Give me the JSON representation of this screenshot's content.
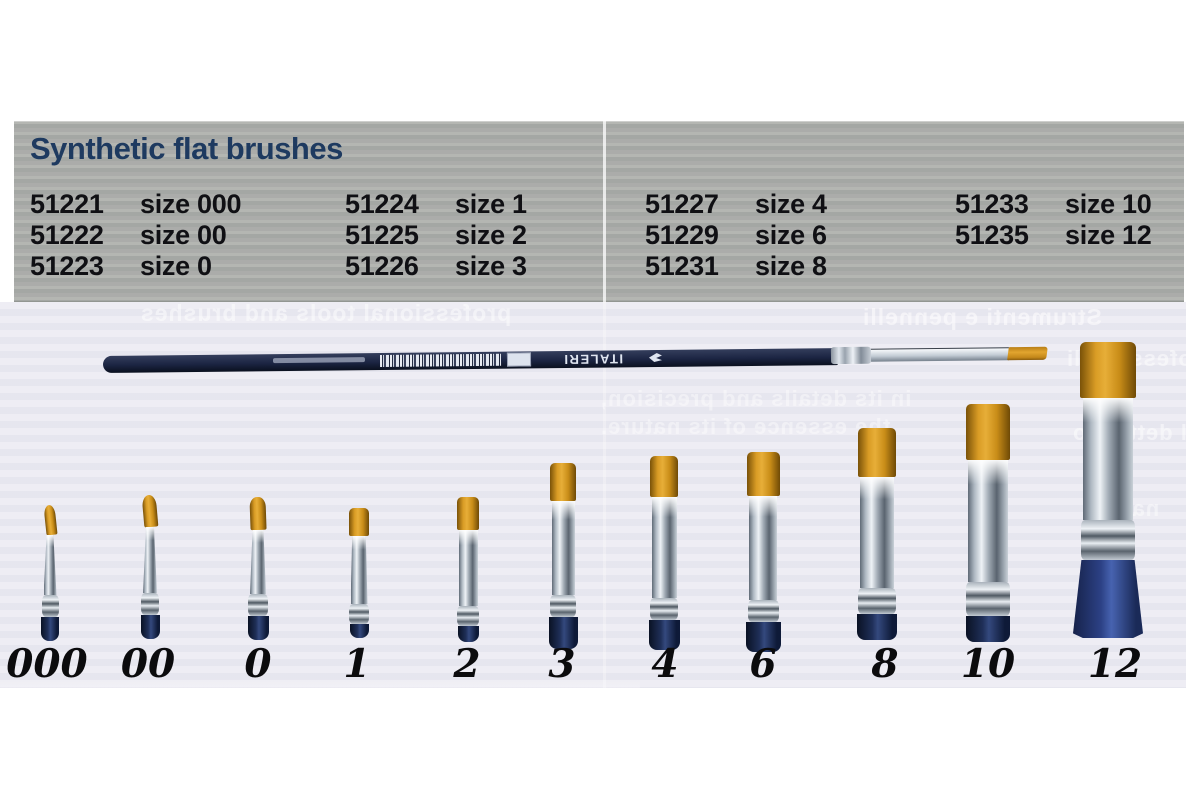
{
  "header": {
    "title": "Synthetic flat brushes",
    "title_color": "#1e3a60",
    "panel_color": "#a8aaa5",
    "columns": [
      [
        {
          "code": "51221",
          "size": "size 000"
        },
        {
          "code": "51222",
          "size": "size 00"
        },
        {
          "code": "51223",
          "size": "size 0"
        }
      ],
      [
        {
          "code": "51224",
          "size": "size 1"
        },
        {
          "code": "51225",
          "size": "size 2"
        },
        {
          "code": "51226",
          "size": "size 3"
        }
      ],
      [
        {
          "code": "51227",
          "size": "size 4"
        },
        {
          "code": "51229",
          "size": "size 6"
        },
        {
          "code": "51231",
          "size": "size 8"
        }
      ],
      [
        {
          "code": "51233",
          "size": "size 10"
        },
        {
          "code": "51235",
          "size": "size 12"
        }
      ]
    ]
  },
  "photo": {
    "background": "#eae9f1",
    "brand_text": "ITALERI",
    "bristle_color": "#d99c25",
    "handle_color": "#1f2f58",
    "ferrule_color": "#c9d1d8",
    "size_labels": [
      "000",
      "00",
      "0",
      "1",
      "2",
      "3",
      "4",
      "6",
      "8",
      "10",
      "12"
    ],
    "bleed_lines": [
      "professional tools and brushes",
      "Strumenti e pennelli",
      "in its details and precision,",
      "the essence of its nature.",
      "professionali",
      "il dettaglio",
      "natura"
    ]
  }
}
